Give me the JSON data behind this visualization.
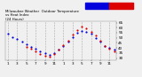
{
  "title_line1": "Milwaukee Weather  Outdoor Temperature",
  "title_line2": "vs Heat Index",
  "title_line3": "(24 Hours)",
  "background_color": "#f0f0f0",
  "plot_bg_color": "#f0f0f0",
  "grid_color": "#aaaaaa",
  "legend_temp_color": "#0000dd",
  "legend_hi_color": "#dd0000",
  "temp_color": "#0000dd",
  "hi_color": "#dd0000",
  "temp_data_x": [
    0,
    1,
    2,
    3,
    4,
    5,
    6,
    7,
    8,
    9,
    10,
    11,
    12,
    13,
    14,
    15,
    16,
    17,
    18,
    19,
    20,
    21,
    22,
    23
  ],
  "temp_data_y": [
    54,
    51,
    49,
    46,
    44,
    41,
    39,
    37,
    35,
    33,
    35,
    38,
    42,
    46,
    51,
    55,
    57,
    56,
    54,
    50,
    46,
    42,
    40,
    38
  ],
  "hi_data_x": [
    4,
    5,
    6,
    7,
    8,
    9,
    10,
    11,
    12,
    13,
    14,
    15,
    16,
    17,
    18,
    19,
    20,
    21,
    22,
    23
  ],
  "hi_data_y": [
    41,
    39,
    37,
    34,
    32,
    31,
    34,
    38,
    43,
    47,
    53,
    58,
    61,
    59,
    56,
    52,
    47,
    42,
    39,
    37
  ],
  "ylim": [
    28,
    66
  ],
  "ytick_vals": [
    30,
    35,
    40,
    45,
    50,
    55,
    60,
    65
  ],
  "ytick_labels": [
    "30",
    "35",
    "40",
    "45",
    "50",
    "55",
    "60",
    "65"
  ],
  "xlim": [
    -0.5,
    23.5
  ],
  "xtick_positions": [
    0,
    2,
    4,
    6,
    8,
    10,
    12,
    14,
    16,
    18,
    20,
    22
  ],
  "xtick_labels": [
    "1",
    "3",
    "5",
    "7",
    "9",
    "11",
    "1",
    "3",
    "5",
    "7",
    "9",
    "11"
  ],
  "dot_size": 2.5,
  "grid_positions": [
    0,
    2,
    4,
    6,
    8,
    10,
    12,
    14,
    16,
    18,
    20,
    22
  ]
}
